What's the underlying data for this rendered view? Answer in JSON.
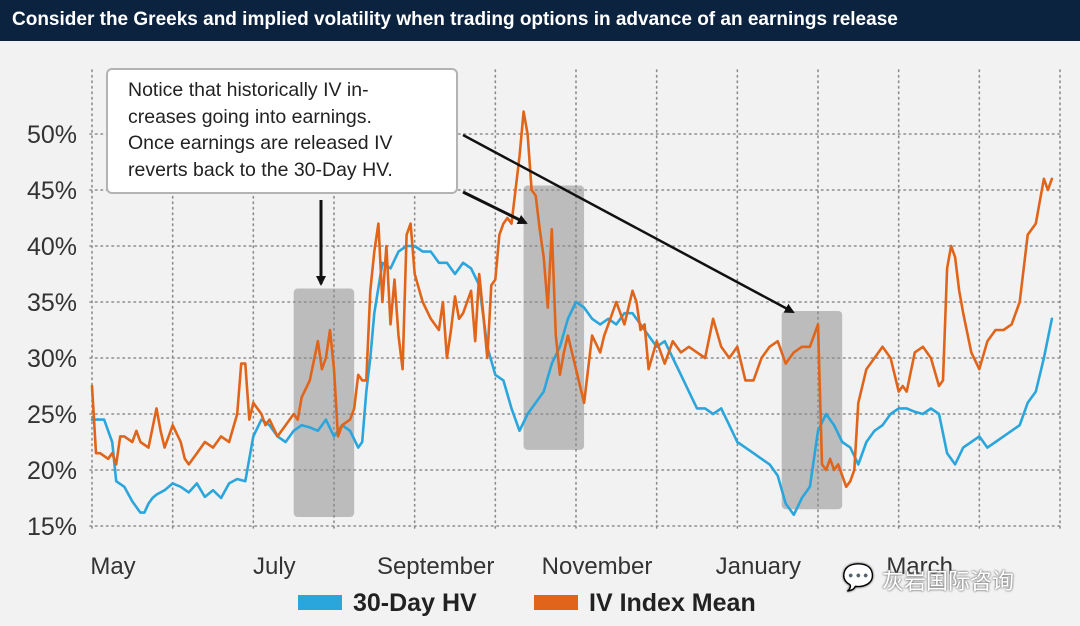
{
  "title": "Consider the Greeks and implied volatility when trading options in advance of an earnings release",
  "annotation": {
    "lines": [
      "Notice that historically IV in-",
      "creases going into earnings.",
      "Once earnings are released IV",
      "reverts back to the 30-Day HV."
    ]
  },
  "watermark": {
    "icon": "wechat-icon",
    "text": "灰岩国际咨询"
  },
  "colors": {
    "title_bg": "#0c2340",
    "hv": "#2ba6dc",
    "iv": "#e0651a",
    "earnings_band": "#a9a9a9",
    "background": "#f2f2f2"
  },
  "chart_data": {
    "type": "line",
    "title": "Consider the Greeks and implied volatility when trading options in advance of an earnings release",
    "xlabel": "",
    "ylabel": "",
    "x_ticks": [
      "May",
      "July",
      "September",
      "November",
      "January",
      "March"
    ],
    "x_range": [
      0,
      12
    ],
    "y_ticks": [
      "15%",
      "20%",
      "25%",
      "30%",
      "35%",
      "40%",
      "45%",
      "50%"
    ],
    "ylim": [
      15,
      52
    ],
    "grid": "dotted",
    "legend": {
      "position": "bottom-center",
      "entries": [
        {
          "name": "30-Day HV",
          "color": "#2ba6dc"
        },
        {
          "name": "IV Index Mean",
          "color": "#e0651a"
        }
      ]
    },
    "earnings_periods": [
      {
        "x": [
          2.5,
          3.25
        ],
        "y": [
          15.8,
          36.2
        ]
      },
      {
        "x": [
          5.35,
          6.1
        ],
        "y": [
          21.8,
          45.4
        ]
      },
      {
        "x": [
          8.55,
          9.3
        ],
        "y": [
          16.5,
          34.2
        ]
      }
    ],
    "series": [
      {
        "name": "30-Day HV",
        "x": [
          0,
          0.15,
          0.25,
          0.3,
          0.4,
          0.5,
          0.6,
          0.65,
          0.7,
          0.75,
          0.8,
          0.9,
          1.0,
          1.1,
          1.2,
          1.3,
          1.4,
          1.5,
          1.6,
          1.7,
          1.8,
          1.9,
          2.0,
          2.1,
          2.2,
          2.3,
          2.4,
          2.5,
          2.6,
          2.7,
          2.8,
          2.9,
          3.0,
          3.1,
          3.2,
          3.3,
          3.35,
          3.4,
          3.45,
          3.5,
          3.6,
          3.7,
          3.8,
          3.9,
          4.0,
          4.1,
          4.2,
          4.3,
          4.4,
          4.5,
          4.6,
          4.7,
          4.8,
          4.9,
          5.0,
          5.1,
          5.2,
          5.3,
          5.4,
          5.5,
          5.6,
          5.7,
          5.8,
          5.9,
          6.0,
          6.1,
          6.2,
          6.3,
          6.4,
          6.5,
          6.6,
          6.7,
          6.8,
          6.9,
          7.0,
          7.1,
          7.2,
          7.3,
          7.4,
          7.5,
          7.6,
          7.7,
          7.8,
          7.9,
          8.0,
          8.1,
          8.2,
          8.3,
          8.4,
          8.5,
          8.6,
          8.7,
          8.8,
          8.9,
          9.0,
          9.1,
          9.2,
          9.3,
          9.4,
          9.5,
          9.6,
          9.7,
          9.8,
          9.9,
          10.0,
          10.1,
          10.2,
          10.3,
          10.4,
          10.5,
          10.6,
          10.7,
          10.8,
          10.9,
          11.0,
          11.1,
          11.2,
          11.3,
          11.4,
          11.5,
          11.6,
          11.7,
          11.8,
          11.9
        ],
        "values": [
          24.5,
          24.5,
          22.5,
          19.0,
          18.5,
          17.2,
          16.2,
          16.2,
          17.0,
          17.5,
          17.8,
          18.2,
          18.8,
          18.5,
          18.0,
          18.8,
          17.6,
          18.2,
          17.5,
          18.8,
          19.2,
          19.0,
          23.0,
          24.5,
          24.0,
          23.0,
          22.5,
          23.5,
          24.0,
          23.8,
          23.5,
          24.5,
          23.0,
          24.0,
          23.5,
          22.0,
          22.5,
          27.0,
          30.0,
          34.0,
          38.5,
          38.0,
          39.5,
          40.0,
          40.0,
          39.5,
          39.5,
          38.5,
          38.5,
          37.5,
          38.5,
          38.0,
          36.5,
          31.0,
          28.5,
          28.0,
          25.5,
          23.5,
          25.0,
          26.0,
          27.0,
          29.5,
          31.0,
          33.5,
          35.0,
          34.5,
          33.5,
          33.0,
          33.5,
          33.0,
          34.0,
          34.0,
          33.0,
          32.0,
          31.0,
          31.5,
          30.0,
          28.5,
          27.0,
          25.5,
          25.5,
          25.0,
          25.5,
          24.0,
          22.5,
          22.0,
          21.5,
          21.0,
          20.5,
          19.5,
          17.0,
          16.0,
          17.5,
          18.5,
          23.5,
          25.0,
          24.0,
          22.5,
          22.0,
          20.5,
          22.5,
          23.5,
          24.0,
          25.0,
          25.5,
          25.5,
          25.2,
          25.0,
          25.5,
          25.0,
          21.5,
          20.5,
          22.0,
          22.5,
          23.0,
          22.0,
          22.5,
          23.0,
          23.5,
          24.0,
          26.0,
          27.0,
          30.0,
          33.5
        ]
      },
      {
        "name": "IV Index Mean",
        "x": [
          0,
          0.05,
          0.1,
          0.2,
          0.25,
          0.3,
          0.35,
          0.4,
          0.5,
          0.55,
          0.6,
          0.7,
          0.8,
          0.85,
          0.9,
          1.0,
          1.1,
          1.15,
          1.2,
          1.3,
          1.4,
          1.5,
          1.6,
          1.7,
          1.8,
          1.85,
          1.9,
          1.95,
          2.0,
          2.1,
          2.15,
          2.2,
          2.3,
          2.4,
          2.5,
          2.55,
          2.6,
          2.7,
          2.8,
          2.85,
          2.9,
          2.95,
          3.0,
          3.05,
          3.1,
          3.2,
          3.25,
          3.3,
          3.35,
          3.4,
          3.45,
          3.5,
          3.55,
          3.6,
          3.65,
          3.7,
          3.75,
          3.8,
          3.85,
          3.9,
          3.95,
          4.0,
          4.1,
          4.2,
          4.3,
          4.35,
          4.4,
          4.45,
          4.5,
          4.55,
          4.6,
          4.7,
          4.75,
          4.8,
          4.85,
          4.9,
          4.95,
          5.0,
          5.05,
          5.1,
          5.15,
          5.2,
          5.25,
          5.3,
          5.35,
          5.4,
          5.45,
          5.5,
          5.55,
          5.6,
          5.65,
          5.7,
          5.75,
          5.8,
          5.85,
          5.9,
          6.0,
          6.1,
          6.2,
          6.3,
          6.35,
          6.4,
          6.5,
          6.6,
          6.7,
          6.75,
          6.8,
          6.85,
          6.9,
          7.0,
          7.1,
          7.2,
          7.3,
          7.4,
          7.5,
          7.6,
          7.7,
          7.8,
          7.9,
          8.0,
          8.1,
          8.2,
          8.3,
          8.4,
          8.5,
          8.6,
          8.7,
          8.8,
          8.9,
          9.0,
          9.05,
          9.1,
          9.15,
          9.2,
          9.25,
          9.3,
          9.35,
          9.4,
          9.45,
          9.5,
          9.6,
          9.7,
          9.8,
          9.9,
          10.0,
          10.05,
          10.1,
          10.2,
          10.3,
          10.4,
          10.5,
          10.55,
          10.6,
          10.65,
          10.7,
          10.75,
          10.8,
          10.9,
          11.0,
          11.1,
          11.2,
          11.3,
          11.4,
          11.5,
          11.55,
          11.6,
          11.7,
          11.75,
          11.8,
          11.85,
          11.9
        ],
        "values": [
          27.5,
          21.5,
          21.5,
          21.0,
          21.5,
          20.5,
          23.0,
          23.0,
          22.5,
          23.5,
          22.5,
          22.0,
          25.5,
          23.5,
          22.0,
          24.0,
          22.5,
          21.0,
          20.5,
          21.5,
          22.5,
          22.0,
          23.0,
          22.5,
          25.0,
          29.5,
          29.5,
          24.5,
          26.0,
          25.0,
          24.0,
          24.5,
          23.0,
          24.0,
          25.0,
          24.5,
          26.5,
          28.0,
          31.5,
          29.0,
          30.0,
          32.5,
          29.0,
          23.0,
          24.0,
          24.5,
          25.5,
          28.5,
          28.0,
          28.0,
          36.0,
          39.5,
          42.0,
          35.0,
          40.0,
          33.0,
          37.0,
          32.0,
          29.0,
          41.0,
          42.0,
          37.5,
          35.0,
          33.5,
          32.5,
          35.0,
          30.0,
          32.5,
          35.5,
          33.5,
          34.0,
          36.0,
          31.5,
          37.5,
          34.0,
          30.0,
          36.5,
          37.0,
          41.0,
          42.0,
          42.5,
          42.0,
          45.0,
          48.0,
          52.0,
          50.0,
          45.0,
          44.5,
          41.5,
          39.0,
          34.5,
          41.5,
          32.0,
          28.5,
          30.5,
          32.0,
          29.0,
          26.0,
          32.0,
          30.5,
          32.0,
          33.0,
          35.0,
          33.0,
          36.0,
          35.0,
          32.5,
          33.0,
          29.0,
          31.5,
          29.5,
          31.5,
          30.5,
          31.0,
          30.5,
          30.0,
          33.5,
          31.0,
          30.0,
          31.0,
          28.0,
          28.0,
          30.0,
          31.0,
          31.5,
          29.5,
          30.5,
          31.0,
          31.0,
          33.0,
          20.5,
          20.0,
          21.0,
          20.0,
          20.5,
          19.5,
          18.5,
          19.0,
          20.0,
          26.0,
          29.0,
          30.0,
          31.0,
          30.0,
          27.0,
          27.5,
          27.0,
          30.5,
          31.0,
          30.0,
          27.5,
          28.0,
          38.0,
          40.0,
          39.0,
          36.0,
          34.0,
          30.5,
          29.0,
          31.5,
          32.5,
          32.5,
          33.0,
          35.0,
          38.0,
          41.0,
          42.0,
          44.0,
          46.0,
          45.0,
          46.0
        ]
      }
    ]
  }
}
